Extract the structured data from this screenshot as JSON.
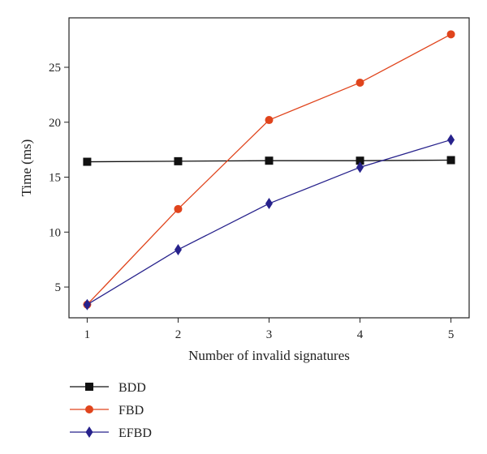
{
  "chart_data": {
    "type": "line",
    "x": [
      1,
      2,
      3,
      4,
      5
    ],
    "xlabel": "Number of invalid signatures",
    "ylabel": "Time (ms)",
    "xlim": [
      0.8,
      5.2
    ],
    "ylim": [
      2.2,
      29.5
    ],
    "xticks": [
      1,
      2,
      3,
      4,
      5
    ],
    "yticks": [
      5,
      10,
      15,
      20,
      25
    ],
    "grid": false,
    "legend_position": "bottom-left",
    "series": [
      {
        "name": "BDD",
        "color": "#111111",
        "marker": "square",
        "values": [
          16.4,
          16.45,
          16.5,
          16.5,
          16.55
        ]
      },
      {
        "name": "FBD",
        "color": "#e0441c",
        "marker": "circle",
        "values": [
          3.4,
          12.1,
          20.2,
          23.6,
          28.0
        ]
      },
      {
        "name": "EFBD",
        "color": "#27228c",
        "marker": "diamond",
        "values": [
          3.4,
          8.4,
          12.6,
          15.9,
          18.4
        ]
      }
    ]
  }
}
